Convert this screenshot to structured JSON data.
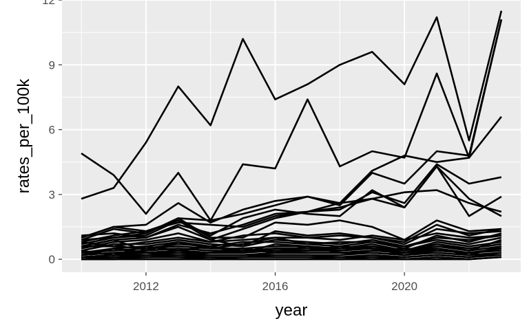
{
  "chart_data": {
    "type": "line",
    "title": "",
    "xlabel": "year",
    "ylabel": "rates_per_100k",
    "xlim": [
      2009.4,
      2023.6
    ],
    "ylim": [
      -0.6,
      12.0
    ],
    "x_ticks": [
      2012,
      2016,
      2020
    ],
    "y_ticks": [
      0,
      3,
      6,
      9,
      12
    ],
    "x": [
      2010,
      2011,
      2012,
      2013,
      2014,
      2015,
      2016,
      2017,
      2018,
      2019,
      2020,
      2021,
      2022,
      2023
    ],
    "grid": true,
    "legend": "none",
    "series": [
      {
        "values": [
          2.8,
          3.3,
          5.4,
          8.0,
          6.2,
          10.2,
          7.4,
          8.1,
          9.0,
          9.6,
          8.1,
          11.2,
          5.5,
          11.5
        ]
      },
      {
        "values": [
          4.9,
          3.9,
          2.1,
          4.0,
          1.8,
          4.4,
          4.2,
          7.4,
          4.3,
          5.0,
          4.7,
          8.6,
          4.7,
          11.1
        ]
      },
      {
        "values": [
          1.0,
          1.5,
          1.6,
          2.6,
          1.7,
          2.3,
          2.7,
          2.9,
          2.6,
          4.1,
          4.8,
          4.5,
          4.7,
          6.6
        ]
      },
      {
        "values": [
          0.9,
          1.4,
          1.2,
          1.9,
          1.8,
          2.1,
          2.5,
          2.9,
          2.5,
          4.0,
          3.5,
          5.0,
          4.8,
          11.1
        ]
      },
      {
        "values": [
          1.1,
          1.2,
          1.0,
          1.6,
          1.2,
          1.6,
          2.1,
          2.2,
          2.3,
          3.1,
          2.6,
          4.4,
          3.5,
          3.8
        ]
      },
      {
        "values": [
          0.8,
          1.1,
          1.3,
          1.8,
          1.1,
          1.9,
          2.3,
          2.1,
          2.0,
          3.2,
          2.4,
          4.3,
          2.8,
          2.0
        ]
      },
      {
        "values": [
          0.6,
          0.9,
          1.0,
          1.5,
          0.9,
          1.4,
          1.9,
          2.2,
          2.6,
          2.8,
          3.1,
          3.2,
          2.6,
          2.2
        ]
      },
      {
        "values": [
          1.0,
          1.5,
          1.3,
          1.7,
          1.6,
          1.5,
          2.0,
          2.2,
          2.4,
          2.8,
          2.4,
          4.3,
          2.0,
          2.9
        ]
      },
      {
        "values": [
          0.7,
          1.0,
          1.2,
          1.9,
          1.0,
          1.0,
          1.7,
          1.6,
          1.8,
          1.5,
          0.9,
          1.8,
          1.3,
          1.4
        ]
      },
      {
        "values": [
          0.9,
          1.0,
          1.1,
          1.8,
          0.9,
          0.6,
          1.3,
          1.1,
          1.2,
          1.0,
          0.8,
          1.6,
          1.1,
          1.4
        ]
      },
      {
        "values": [
          0.5,
          0.8,
          0.9,
          1.2,
          0.8,
          0.9,
          1.0,
          1.0,
          1.1,
          1.0,
          0.7,
          1.4,
          1.2,
          1.3
        ]
      },
      {
        "values": [
          0.6,
          0.6,
          0.8,
          1.0,
          0.8,
          1.1,
          1.2,
          1.0,
          0.9,
          1.1,
          0.9,
          1.2,
          1.0,
          1.1
        ]
      },
      {
        "values": [
          0.4,
          0.7,
          0.7,
          0.9,
          0.7,
          0.6,
          0.9,
          0.8,
          0.7,
          0.9,
          0.6,
          1.0,
          0.9,
          1.1
        ]
      },
      {
        "values": [
          0.3,
          0.5,
          0.6,
          0.8,
          0.6,
          0.8,
          0.8,
          0.7,
          0.8,
          0.8,
          0.6,
          0.9,
          0.7,
          1.0
        ]
      },
      {
        "values": [
          0.3,
          0.4,
          0.5,
          0.6,
          0.5,
          0.5,
          0.6,
          0.6,
          0.5,
          0.7,
          0.4,
          0.8,
          0.6,
          0.8
        ]
      },
      {
        "values": [
          0.2,
          0.3,
          0.4,
          0.5,
          0.4,
          0.4,
          0.5,
          0.5,
          0.5,
          0.6,
          0.4,
          0.7,
          0.5,
          0.7
        ]
      },
      {
        "values": [
          0.2,
          0.3,
          0.3,
          0.4,
          0.3,
          0.4,
          0.4,
          0.4,
          0.4,
          0.5,
          0.3,
          0.6,
          0.4,
          0.6
        ]
      },
      {
        "values": [
          0.1,
          0.2,
          0.3,
          0.3,
          0.3,
          0.3,
          0.4,
          0.3,
          0.3,
          0.4,
          0.3,
          0.5,
          0.3,
          0.5
        ]
      },
      {
        "values": [
          0.1,
          0.2,
          0.2,
          0.3,
          0.2,
          0.2,
          0.3,
          0.3,
          0.3,
          0.3,
          0.2,
          0.4,
          0.3,
          0.4
        ]
      },
      {
        "values": [
          0.1,
          0.1,
          0.2,
          0.2,
          0.2,
          0.2,
          0.2,
          0.2,
          0.2,
          0.3,
          0.2,
          0.3,
          0.2,
          0.3
        ]
      },
      {
        "values": [
          0.0,
          0.1,
          0.1,
          0.2,
          0.1,
          0.1,
          0.2,
          0.2,
          0.1,
          0.2,
          0.1,
          0.2,
          0.1,
          0.3
        ]
      },
      {
        "values": [
          0.0,
          0.1,
          0.1,
          0.1,
          0.1,
          0.1,
          0.1,
          0.1,
          0.1,
          0.1,
          0.1,
          0.2,
          0.1,
          0.2
        ]
      },
      {
        "values": [
          0.0,
          0.0,
          0.1,
          0.1,
          0.0,
          0.1,
          0.1,
          0.1,
          0.0,
          0.1,
          0.0,
          0.1,
          0.0,
          0.1
        ]
      },
      {
        "values": [
          0.0,
          0.0,
          0.0,
          0.0,
          0.0,
          0.0,
          0.0,
          0.0,
          0.0,
          0.0,
          0.0,
          0.0,
          0.0,
          0.1
        ]
      },
      {
        "values": [
          0.8,
          0.6,
          0.5,
          0.7,
          0.6,
          0.3,
          0.7,
          0.6,
          0.4,
          0.6,
          0.3,
          0.7,
          0.4,
          0.9
        ]
      },
      {
        "values": [
          0.4,
          0.2,
          0.6,
          0.4,
          0.3,
          0.5,
          0.3,
          0.6,
          0.3,
          0.4,
          0.5,
          0.4,
          0.3,
          0.5
        ]
      },
      {
        "values": [
          0.6,
          0.9,
          0.4,
          0.8,
          0.5,
          0.7,
          1.0,
          0.7,
          0.6,
          0.8,
          0.5,
          1.1,
          0.8,
          1.2
        ]
      },
      {
        "values": [
          0.2,
          0.5,
          0.3,
          0.4,
          0.6,
          0.3,
          0.5,
          0.4,
          0.6,
          0.5,
          0.2,
          0.5,
          0.2,
          0.6
        ]
      }
    ]
  }
}
